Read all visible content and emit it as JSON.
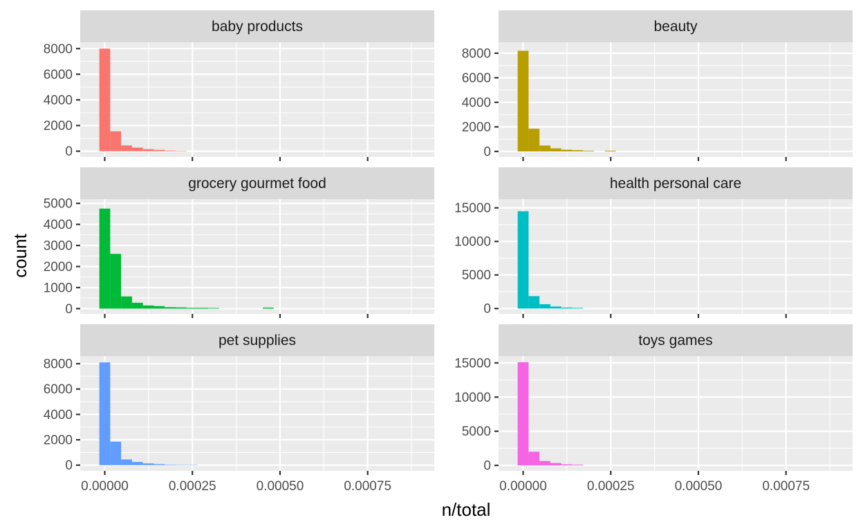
{
  "chart_data": {
    "type": "bar",
    "subtype": "faceted-histogram",
    "xlabel": "n/total",
    "ylabel": "count",
    "grid": true,
    "legend": "none",
    "x_ticks": [
      0,
      0.00025,
      0.0005,
      0.00075
    ],
    "x_tick_labels": [
      "0.00000",
      "0.00025",
      "0.00050",
      "0.00075"
    ],
    "xlim": [
      -7e-05,
      0.00094
    ],
    "bin_width": 3.11e-05,
    "first_bin_center": 0,
    "bins_x_start": [
      -1.55e-05,
      1.56e-05,
      4.67e-05,
      7.78e-05,
      0.0001089,
      0.00014,
      0.0001711,
      0.0002022,
      0.0002333,
      0.0002644,
      0.0002955,
      0.0003266,
      0.0003577,
      0.0003888,
      0.0004199,
      0.000451
    ],
    "facets": [
      {
        "label": "baby products",
        "color": "#F8766D",
        "ylim": [
          -450,
          8500
        ],
        "yticks": [
          0,
          2000,
          4000,
          6000,
          8000
        ],
        "ytick_labels": [
          "0",
          "2000",
          "4000",
          "6000",
          "8000"
        ],
        "counts": [
          8000,
          1550,
          450,
          280,
          160,
          100,
          50,
          30,
          0,
          0,
          0,
          0,
          0,
          0,
          0,
          0
        ]
      },
      {
        "label": "beauty",
        "color": "#B79F00",
        "ylim": [
          -450,
          8900
        ],
        "yticks": [
          0,
          2000,
          4000,
          6000,
          8000
        ],
        "ytick_labels": [
          "0",
          "2000",
          "4000",
          "6000",
          "8000"
        ],
        "counts": [
          8200,
          1850,
          480,
          250,
          140,
          100,
          50,
          0,
          60,
          0,
          0,
          0,
          0,
          0,
          0,
          0
        ]
      },
      {
        "label": "grocery gourmet food",
        "color": "#00BA38",
        "ylim": [
          -250,
          5200
        ],
        "yticks": [
          0,
          1000,
          2000,
          3000,
          4000,
          5000
        ],
        "ytick_labels": [
          "0",
          "1000",
          "2000",
          "3000",
          "4000",
          "5000"
        ],
        "counts": [
          4750,
          2600,
          580,
          280,
          150,
          120,
          70,
          60,
          40,
          40,
          30,
          0,
          0,
          0,
          0,
          50
        ]
      },
      {
        "label": "health personal care",
        "color": "#00BFC4",
        "ylim": [
          -800,
          16300
        ],
        "yticks": [
          0,
          5000,
          10000,
          15000
        ],
        "ytick_labels": [
          "0",
          "5000",
          "10000",
          "15000"
        ],
        "counts": [
          14500,
          1850,
          650,
          300,
          150,
          100,
          0,
          0,
          0,
          0,
          0,
          0,
          0,
          0,
          0,
          0
        ]
      },
      {
        "label": "pet supplies",
        "color": "#619CFF",
        "ylim": [
          -450,
          8600
        ],
        "yticks": [
          0,
          2000,
          4000,
          6000,
          8000
        ],
        "ytick_labels": [
          "0",
          "2000",
          "4000",
          "6000",
          "8000"
        ],
        "counts": [
          8100,
          1850,
          450,
          250,
          140,
          80,
          40,
          30,
          20,
          0,
          0,
          0,
          0,
          0,
          0,
          0
        ]
      },
      {
        "label": "toys games",
        "color": "#F564E3",
        "ylim": [
          -800,
          16000
        ],
        "yticks": [
          0,
          5000,
          10000,
          15000
        ],
        "ytick_labels": [
          "0",
          "5000",
          "10000",
          "15000"
        ],
        "counts": [
          15100,
          2000,
          650,
          350,
          150,
          100,
          0,
          0,
          0,
          0,
          0,
          0,
          0,
          0,
          0,
          0
        ]
      }
    ]
  }
}
